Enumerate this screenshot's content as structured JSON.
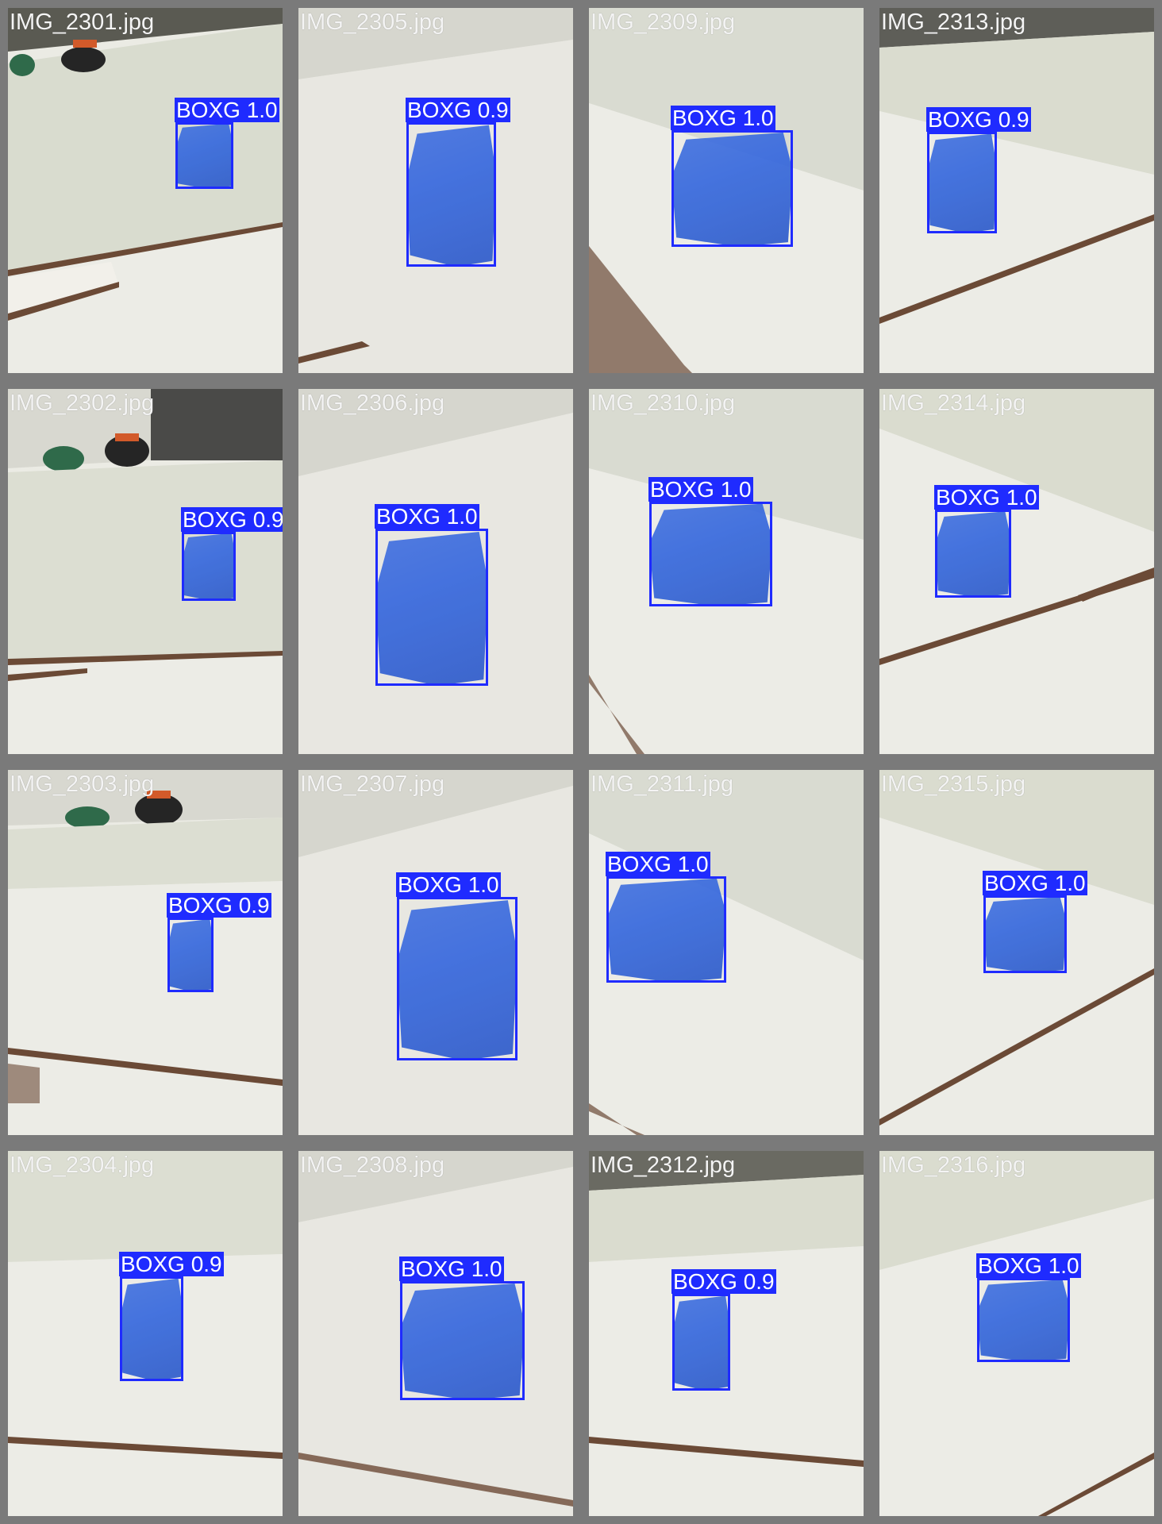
{
  "tiles": [
    {
      "file": "IMG_2301.jpg",
      "label": "BOXG 1.0",
      "variant": "broom-wall"
    },
    {
      "file": "IMG_2305.jpg",
      "label": "BOXG 0.9",
      "variant": "floor"
    },
    {
      "file": "IMG_2309.jpg",
      "label": "BOXG 1.0",
      "variant": "wall-diag"
    },
    {
      "file": "IMG_2313.jpg",
      "label": "BOXG 0.9",
      "variant": "wall-diag"
    },
    {
      "file": "IMG_2302.jpg",
      "label": "BOXG 0.9",
      "variant": "broom-wall"
    },
    {
      "file": "IMG_2306.jpg",
      "label": "BOXG 1.0",
      "variant": "floor"
    },
    {
      "file": "IMG_2310.jpg",
      "label": "BOXG 1.0",
      "variant": "wall-diag"
    },
    {
      "file": "IMG_2314.jpg",
      "label": "BOXG 1.0",
      "variant": "wall-diag"
    },
    {
      "file": "IMG_2303.jpg",
      "label": "BOXG 0.9",
      "variant": "broom-wall"
    },
    {
      "file": "IMG_2307.jpg",
      "label": "BOXG 1.0",
      "variant": "floor"
    },
    {
      "file": "IMG_2311.jpg",
      "label": "BOXG 1.0",
      "variant": "wall-diag"
    },
    {
      "file": "IMG_2315.jpg",
      "label": "BOXG 1.0",
      "variant": "wall-diag"
    },
    {
      "file": "IMG_2304.jpg",
      "label": "BOXG 0.9",
      "variant": "broom-wall"
    },
    {
      "file": "IMG_2308.jpg",
      "label": "BOXG 1.0",
      "variant": "floor"
    },
    {
      "file": "IMG_2312.jpg",
      "label": "BOXG 0.9",
      "variant": "wall-diag"
    },
    {
      "file": "IMG_2316.jpg",
      "label": "BOXG 1.0",
      "variant": "wall-diag"
    }
  ],
  "colors": {
    "box_outline": "#1f2bff",
    "mask_fill": "#3366dd",
    "tile_border": "#7a7a7a",
    "label_text": "#ffffff",
    "filename_text": "#f4f4f4"
  }
}
